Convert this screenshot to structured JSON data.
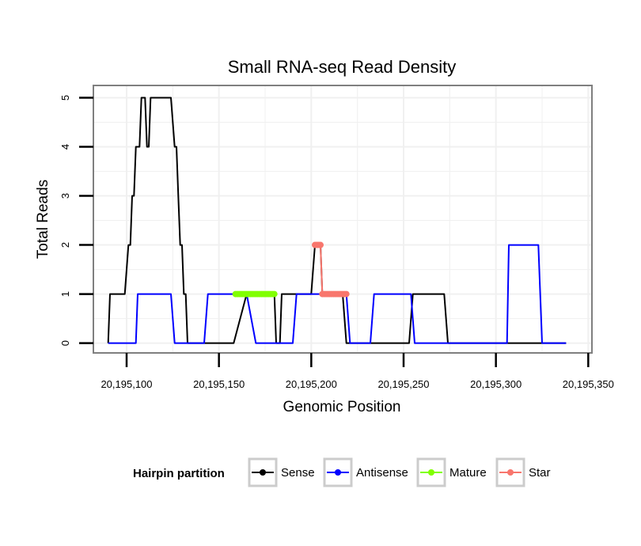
{
  "chart_data": {
    "type": "line",
    "title": "Small RNA-seq Read Density",
    "xlabel": "Genomic Position",
    "ylabel": "Total Reads",
    "xlim": [
      20195082,
      20195352
    ],
    "ylim": [
      -0.2,
      5.25
    ],
    "x_ticks": [
      20195100,
      20195150,
      20195200,
      20195250,
      20195300,
      20195350
    ],
    "x_tick_labels": [
      "20,195,100",
      "20,195,150",
      "20,195,200",
      "20,195,250",
      "20,195,300",
      "20,195,350"
    ],
    "y_ticks": [
      0,
      1,
      2,
      3,
      4,
      5
    ],
    "y_tick_labels": [
      "0",
      "1",
      "2",
      "3",
      "4",
      "5"
    ],
    "grid": true,
    "legend": {
      "title": "Hairpin partition",
      "position": "bottom",
      "entries": [
        "Sense",
        "Antisense",
        "Mature",
        "Star"
      ]
    },
    "series": [
      {
        "name": "Sense",
        "color": "#000000",
        "style": "line",
        "x": [
          20195090,
          20195091,
          20195099,
          20195101,
          20195102,
          20195103,
          20195104,
          20195105,
          20195106,
          20195107,
          20195108,
          20195109,
          20195110,
          20195111,
          20195112,
          20195113,
          20195114,
          20195115,
          20195124,
          20195126,
          20195127,
          20195128,
          20195129,
          20195130,
          20195131,
          20195132,
          20195133,
          20195134,
          20195158,
          20195165,
          20195170,
          20195175,
          20195180,
          20195181,
          20195183,
          20195184,
          20195200,
          20195202,
          20195203,
          20195204,
          20195205,
          20195206,
          20195216,
          20195217,
          20195219,
          20195220,
          20195253,
          20195255,
          20195256,
          20195272,
          20195274,
          20195338
        ],
        "y": [
          0,
          1,
          1,
          2,
          2,
          3,
          3,
          4,
          4,
          4,
          5,
          5,
          5,
          4,
          4,
          5,
          5,
          5,
          5,
          4,
          4,
          3,
          2,
          2,
          1,
          1,
          0,
          0,
          0,
          1,
          1,
          1,
          1,
          0,
          0,
          1,
          1,
          2,
          2,
          2,
          2,
          1,
          1,
          1,
          0,
          0,
          0,
          1,
          1,
          1,
          0,
          0
        ]
      },
      {
        "name": "Antisense",
        "color": "#0000ff",
        "style": "line",
        "x": [
          20195090,
          20195105,
          20195106,
          20195124,
          20195126,
          20195142,
          20195144,
          20195158,
          20195165,
          20195170,
          20195175,
          20195190,
          20195192,
          20195204,
          20195206,
          20195219,
          20195221,
          20195232,
          20195234,
          20195254,
          20195256,
          20195306,
          20195307,
          20195323,
          20195325,
          20195338
        ],
        "y": [
          0,
          0,
          1,
          1,
          0,
          0,
          1,
          1,
          1,
          0,
          0,
          0,
          1,
          1,
          1,
          1,
          0,
          0,
          1,
          1,
          0,
          0,
          2,
          2,
          0,
          0
        ]
      },
      {
        "name": "Mature",
        "color": "#80ff00",
        "style": "line+points",
        "x": [
          20195159,
          20195160,
          20195161,
          20195162,
          20195163,
          20195164,
          20195165,
          20195166,
          20195167,
          20195168,
          20195169,
          20195170,
          20195171,
          20195172,
          20195173,
          20195174,
          20195175,
          20195176,
          20195177,
          20195178,
          20195179,
          20195180
        ],
        "y": [
          1,
          1,
          1,
          1,
          1,
          1,
          1,
          1,
          1,
          1,
          1,
          1,
          1,
          1,
          1,
          1,
          1,
          1,
          1,
          1,
          1,
          1
        ]
      },
      {
        "name": "Star",
        "color": "#f8766d",
        "style": "line+points",
        "x": [
          20195202,
          20195203,
          20195204,
          20195205,
          20195206,
          20195207,
          20195208,
          20195209,
          20195210,
          20195211,
          20195212,
          20195213,
          20195214,
          20195215,
          20195216,
          20195217,
          20195218,
          20195219
        ],
        "y": [
          2,
          2,
          2,
          2,
          1,
          1,
          1,
          1,
          1,
          1,
          1,
          1,
          1,
          1,
          1,
          1,
          1,
          1
        ]
      }
    ]
  }
}
